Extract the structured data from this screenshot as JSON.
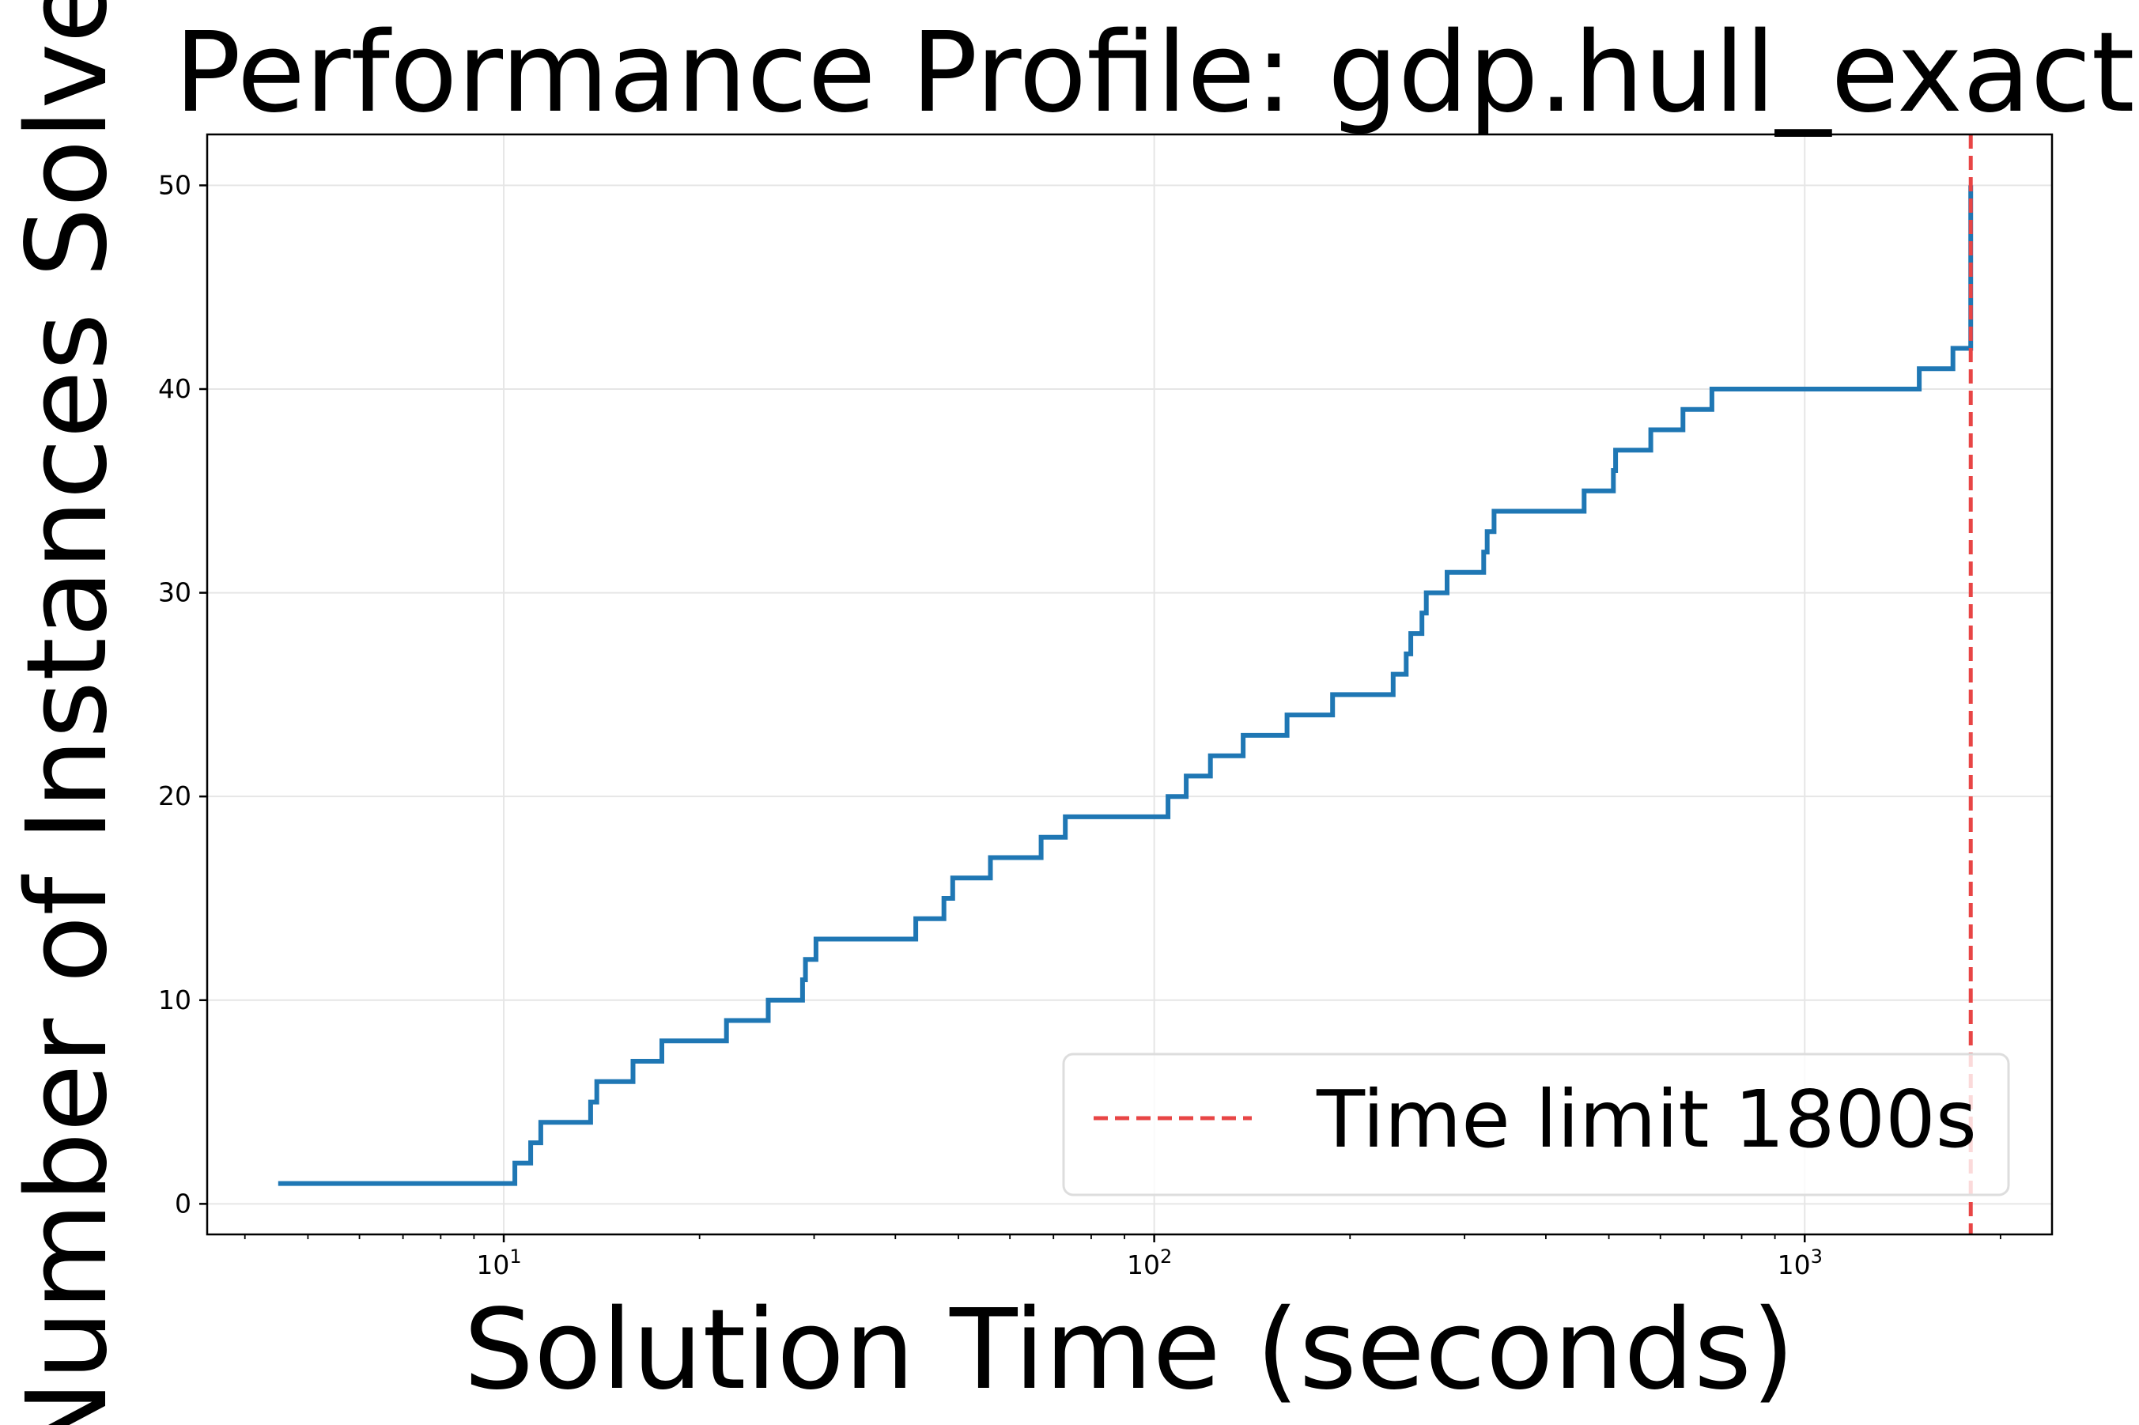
{
  "chart_data": {
    "type": "line",
    "title": "Performance Profile: gdp.hull_exact",
    "xlabel": "Solution Time (seconds)",
    "ylabel": "Number of Instances Solved",
    "x_scale": "log",
    "xlim": [
      3.5,
      2400
    ],
    "ylim": [
      -1.5,
      52.5
    ],
    "y_ticks": [
      0,
      10,
      20,
      30,
      40,
      50
    ],
    "x_ticks": [
      10,
      100,
      1000
    ],
    "x_tick_labels": [
      {
        "base": "10",
        "exp": "1"
      },
      {
        "base": "10",
        "exp": "2"
      },
      {
        "base": "10",
        "exp": "3"
      }
    ],
    "grid": true,
    "legend_position": "lower-right",
    "colors": {
      "series": "#1f77b4",
      "time_limit": "#e84545"
    },
    "series": [
      {
        "name": "",
        "step": "post",
        "points": [
          [
            4.5,
            1
          ],
          [
            10.4,
            2
          ],
          [
            11.0,
            3
          ],
          [
            11.4,
            4
          ],
          [
            13.6,
            5
          ],
          [
            13.9,
            6
          ],
          [
            15.8,
            7
          ],
          [
            17.5,
            8
          ],
          [
            22.0,
            9
          ],
          [
            25.5,
            10
          ],
          [
            28.8,
            11
          ],
          [
            29.1,
            12
          ],
          [
            30.2,
            13
          ],
          [
            43.0,
            14
          ],
          [
            47.5,
            15
          ],
          [
            49.0,
            16
          ],
          [
            56.0,
            17
          ],
          [
            67.0,
            18
          ],
          [
            73.0,
            19
          ],
          [
            105.0,
            20
          ],
          [
            112.0,
            21
          ],
          [
            122.0,
            22
          ],
          [
            137.0,
            23
          ],
          [
            160.0,
            24
          ],
          [
            188.0,
            25
          ],
          [
            233.0,
            26
          ],
          [
            244.0,
            27
          ],
          [
            248.0,
            28
          ],
          [
            258.0,
            29
          ],
          [
            262.0,
            30
          ],
          [
            282.0,
            31
          ],
          [
            321.0,
            32
          ],
          [
            325.0,
            33
          ],
          [
            333.0,
            34
          ],
          [
            458.0,
            35
          ],
          [
            508.0,
            36
          ],
          [
            512.0,
            37
          ],
          [
            580.0,
            38
          ],
          [
            650.0,
            39
          ],
          [
            720.0,
            40
          ],
          [
            1500.0,
            41
          ],
          [
            1690.0,
            42
          ],
          [
            1800.0,
            50
          ]
        ]
      }
    ],
    "reference_lines": [
      {
        "type": "vertical",
        "x": 1800,
        "label": "Time limit 1800s",
        "style": "dashed"
      }
    ]
  }
}
